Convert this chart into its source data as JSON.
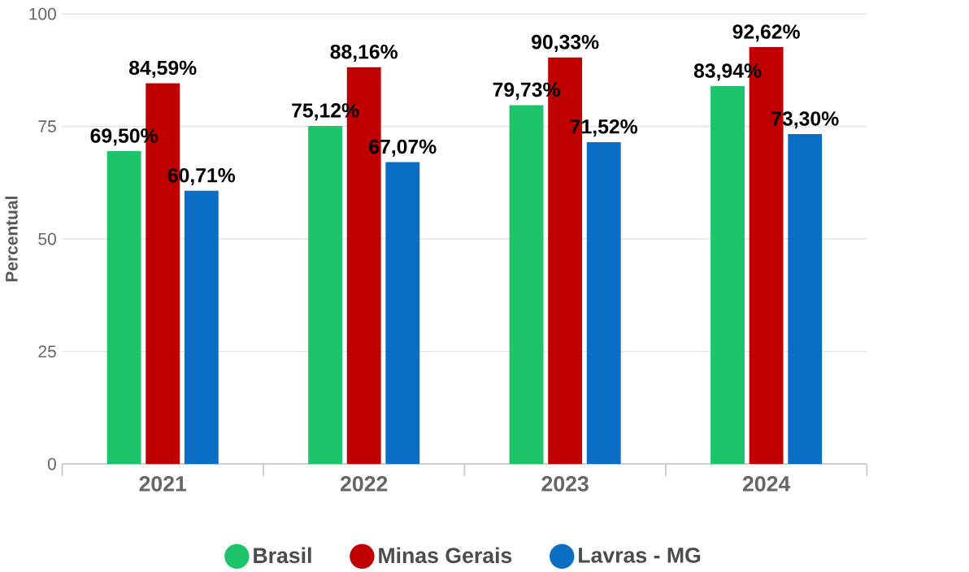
{
  "chart_data": {
    "type": "bar",
    "ylabel": "Percentual",
    "categories": [
      "2021",
      "2022",
      "2023",
      "2024"
    ],
    "series": [
      {
        "name": "Brasil",
        "color": "#1ec46a",
        "values": [
          69.5,
          75.12,
          79.73,
          83.94
        ],
        "value_labels": [
          "69,50%",
          "75,12%",
          "79,73%",
          "83,94%"
        ]
      },
      {
        "name": "Minas Gerais",
        "color": "#c00000",
        "values": [
          84.59,
          88.16,
          90.33,
          92.62
        ],
        "value_labels": [
          "84,59%",
          "88,16%",
          "90,33%",
          "92,62%"
        ]
      },
      {
        "name": "Lavras - MG",
        "color": "#0a6fc4",
        "values": [
          60.71,
          67.07,
          71.52,
          73.3
        ],
        "value_labels": [
          "60,71%",
          "67,07%",
          "71,52%",
          "73,30%"
        ]
      }
    ],
    "ylim": [
      0,
      100
    ],
    "yticks": [
      0,
      25,
      50,
      75,
      100
    ],
    "grid": "y",
    "legend": "bottom"
  }
}
